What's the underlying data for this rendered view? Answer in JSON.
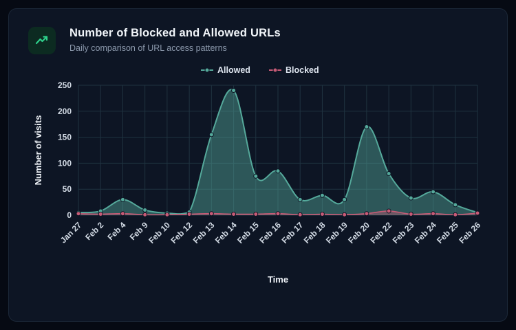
{
  "header": {
    "icon": "trending-up-icon",
    "title": "Number of Blocked and Allowed URLs",
    "subtitle": "Daily comparison of URL access patterns"
  },
  "chart_data": {
    "type": "area",
    "title": "Number of Blocked and Allowed URLs",
    "xlabel": "Time",
    "ylabel": "Number of visits",
    "ylim": [
      0,
      250
    ],
    "yticks": [
      0,
      50,
      100,
      150,
      200,
      250
    ],
    "grid": true,
    "legend_position": "top",
    "categories": [
      "Jan 27",
      "Feb 2",
      "Feb 4",
      "Feb 9",
      "Feb 10",
      "Feb 12",
      "Feb 13",
      "Feb 14",
      "Feb 15",
      "Feb 16",
      "Feb 17",
      "Feb 18",
      "Feb 19",
      "Feb 20",
      "Feb 22",
      "Feb 23",
      "Feb 24",
      "Feb 25",
      "Feb 26"
    ],
    "series": [
      {
        "name": "Allowed",
        "color": "#55a99b",
        "values": [
          5,
          8,
          30,
          10,
          4,
          6,
          155,
          240,
          75,
          85,
          30,
          38,
          30,
          170,
          80,
          33,
          45,
          20,
          5
        ]
      },
      {
        "name": "Blocked",
        "color": "#c75b76",
        "values": [
          3,
          2,
          3,
          1,
          1,
          2,
          3,
          2,
          2,
          3,
          1,
          2,
          1,
          3,
          8,
          2,
          3,
          1,
          4
        ]
      }
    ]
  },
  "colors": {
    "page_bg": "#060a13",
    "card_bg": "#0d1524",
    "grid": "#1f3340",
    "icon_green": "#2ed08b",
    "allowed": "#55a99b",
    "blocked": "#c75b76"
  }
}
